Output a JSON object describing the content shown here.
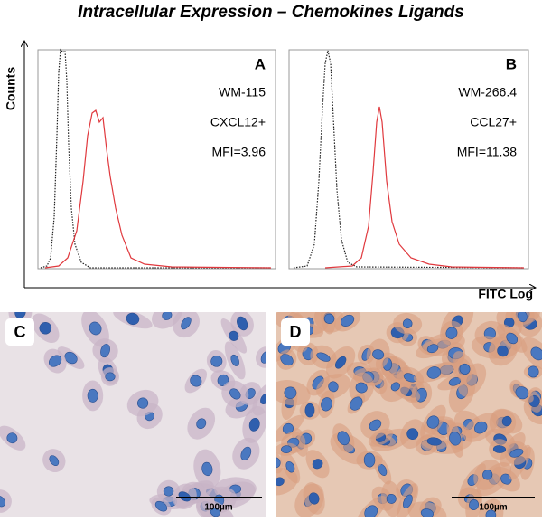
{
  "title": "Intracellular Expression – Chemokines Ligands",
  "y_axis_label": "Counts",
  "x_axis_label": "FITC Log",
  "panels": [
    {
      "label": "A",
      "cell_line": "WM-115",
      "marker": "CXCL12+",
      "mfi": "MFI=3.96"
    },
    {
      "label": "B",
      "cell_line": "WM-266.4",
      "marker": "CCL27+",
      "mfi": "MFI=11.38"
    }
  ],
  "images": [
    {
      "label": "C",
      "scale_bar": "100µm"
    },
    {
      "label": "D",
      "scale_bar": "100µm"
    }
  ]
}
